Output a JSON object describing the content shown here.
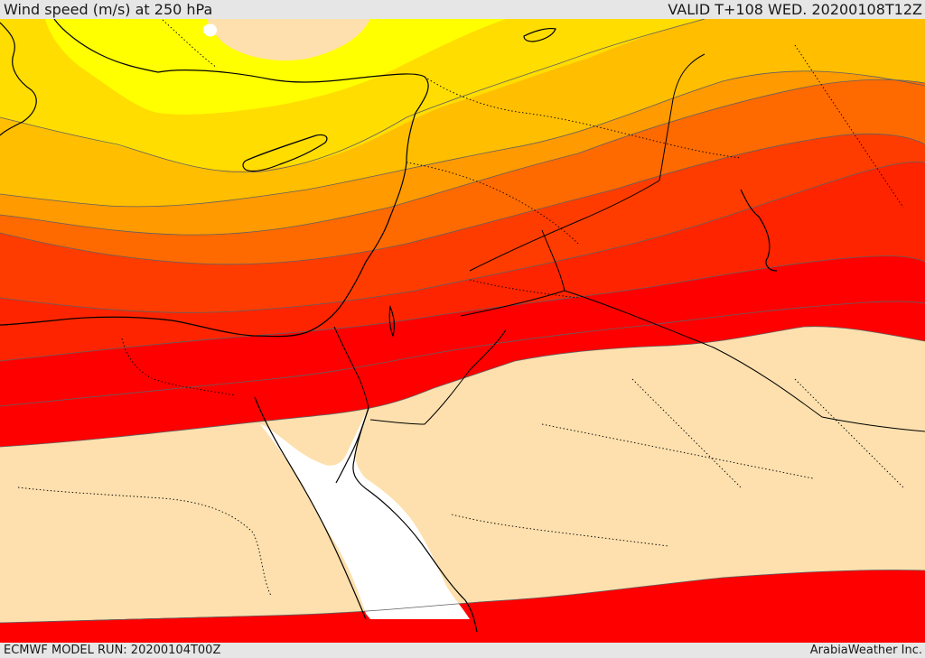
{
  "header": {
    "title": "Wind speed (m/s) at 250 hPa",
    "valid": "VALID T+108 WED. 20200108T12Z"
  },
  "footer": {
    "model_run": "ECMWF MODEL RUN: 20200104T00Z",
    "credit": "ArabiaWeather Inc."
  },
  "colors": {
    "land_base": "#fde0ad",
    "sea": "#ffffff",
    "band_yellow": "#ffff00",
    "band_gold": "#ffdd00",
    "band_amber": "#ffbe00",
    "band_orange": "#ff9a00",
    "band_dark_orange": "#ff6a00",
    "band_red_orange": "#ff3c00",
    "band_red": "#ff2400",
    "band_deep_red": "#ff0000",
    "coastline": "#000000",
    "border": "#000000",
    "contour": "#606060"
  }
}
